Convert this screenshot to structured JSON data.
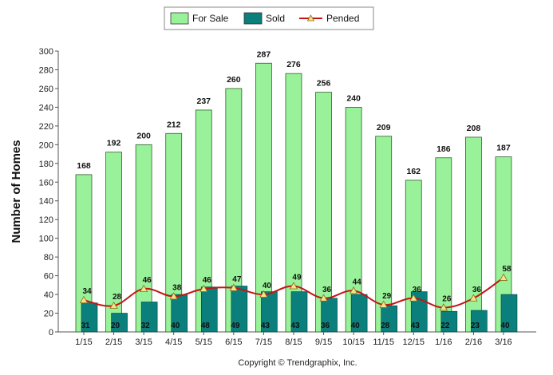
{
  "chart_data": {
    "type": "bar",
    "categories": [
      "1/15",
      "2/15",
      "3/15",
      "4/15",
      "5/15",
      "6/15",
      "7/15",
      "8/15",
      "9/15",
      "10/15",
      "11/15",
      "12/15",
      "1/16",
      "2/16",
      "3/16"
    ],
    "series": [
      {
        "name": "For Sale",
        "kind": "bar",
        "color": "#99f299",
        "values": [
          168,
          192,
          200,
          212,
          237,
          260,
          287,
          276,
          256,
          240,
          209,
          162,
          186,
          208,
          187
        ]
      },
      {
        "name": "Sold",
        "kind": "bar",
        "color": "#0a7f7c",
        "values": [
          31,
          20,
          32,
          40,
          48,
          49,
          43,
          43,
          36,
          40,
          28,
          43,
          22,
          23,
          40
        ]
      },
      {
        "name": "Pended",
        "kind": "line",
        "color": "#c41414",
        "marker": "triangle",
        "values": [
          34,
          28,
          46,
          38,
          46,
          47,
          40,
          49,
          36,
          44,
          29,
          36,
          26,
          36,
          58
        ]
      }
    ],
    "ylabel": "Number of Homes",
    "xlabel": "",
    "ylim": [
      0,
      300
    ],
    "yticks": [
      0,
      20,
      40,
      60,
      80,
      100,
      120,
      140,
      160,
      180,
      200,
      220,
      240,
      260,
      280,
      300
    ],
    "grid": false,
    "legend": "top-center"
  },
  "footer": {
    "copyright": "Copyright © Trendgraphix, Inc."
  }
}
